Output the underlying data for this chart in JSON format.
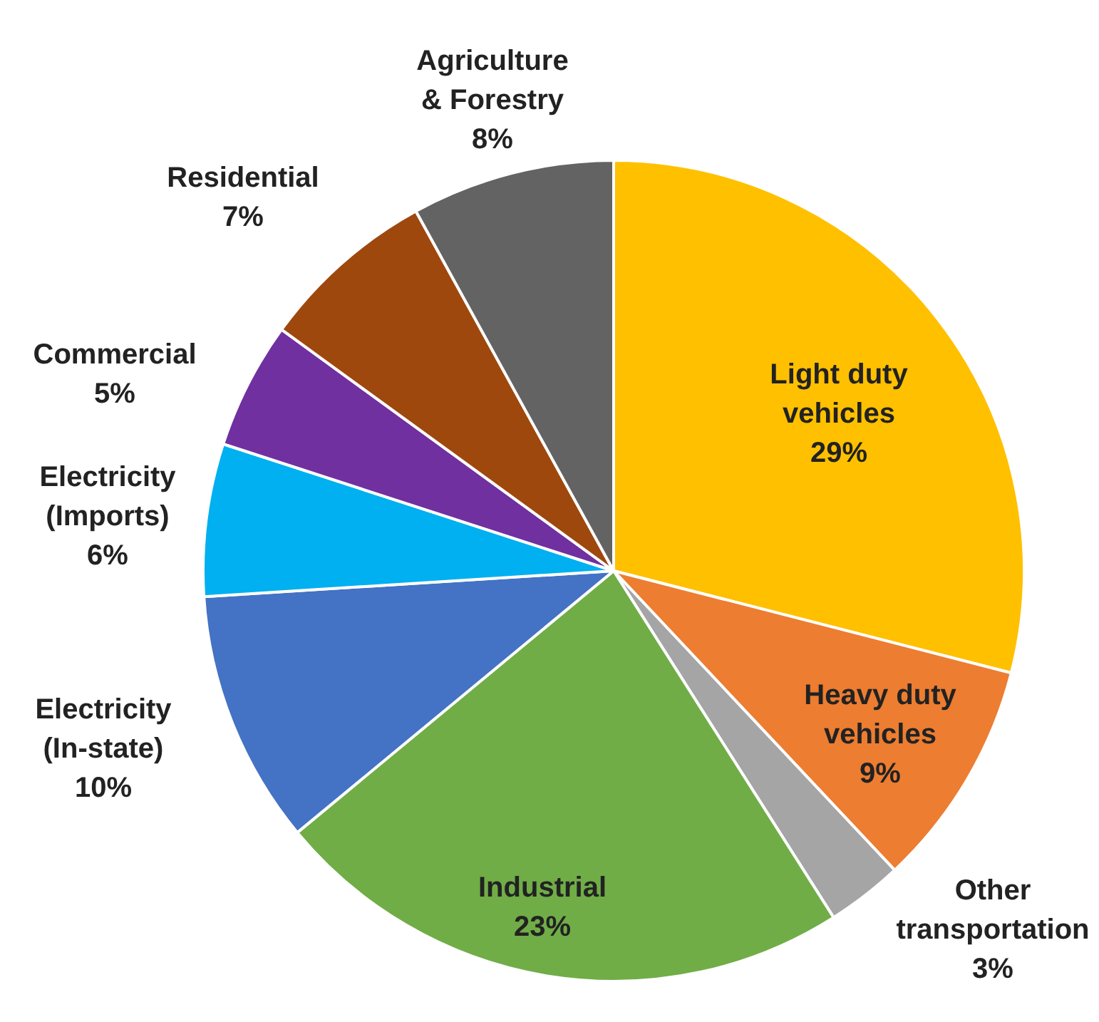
{
  "chart_data": {
    "type": "pie",
    "categories": [
      "Light duty\nvehicles",
      "Heavy duty\nvehicles",
      "Other\ntransportation",
      "Industrial",
      "Electricity\n(In-state)",
      "Electricity\n(Imports)",
      "Commercial",
      "Residential",
      "Agriculture\n& Forestry"
    ],
    "values": [
      29,
      9,
      3,
      23,
      10,
      6,
      5,
      7,
      8
    ],
    "value_labels": [
      "29%",
      "9%",
      "3%",
      "23%",
      "10%",
      "6%",
      "5%",
      "7%",
      "8%"
    ],
    "colors": [
      "#ffc000",
      "#ed7d31",
      "#a5a5a5",
      "#70ad47",
      "#4472c4",
      "#00b0f0",
      "#7030a0",
      "#9e480e",
      "#636363"
    ]
  }
}
